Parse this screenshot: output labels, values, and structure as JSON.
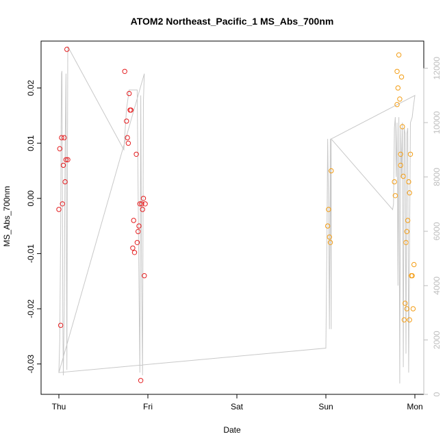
{
  "chart_data": {
    "type": "scatter",
    "title": "ATOM2 Northeast_Pacific_1 MS_Abs_700nm",
    "xlabel": "Date",
    "ylabel": "MS_Abs_700nm",
    "x_unit": "days since Thu 00:00",
    "xlim": [
      -0.2,
      4.1
    ],
    "ylim": [
      -0.0355,
      0.0285
    ],
    "x_ticks": [
      {
        "value": 0,
        "label": "Thu"
      },
      {
        "value": 1,
        "label": "Fri"
      },
      {
        "value": 2,
        "label": "Sat"
      },
      {
        "value": 3,
        "label": "Sun"
      },
      {
        "value": 4,
        "label": "Mon"
      }
    ],
    "y_ticks": [
      -0.03,
      -0.02,
      -0.01,
      0.0,
      0.01,
      0.02
    ],
    "y_tick_labels": [
      "-0.03",
      "-0.02",
      "-0.01",
      "0.00",
      "0.01",
      "0.02"
    ],
    "y2lim": [
      0,
      13000
    ],
    "y2_ticks": [
      0,
      2000,
      4000,
      6000,
      8000,
      10000,
      12000
    ],
    "grid": false,
    "colors": {
      "red_series": "#e41a1c",
      "orange_series": "#f39c12",
      "depth_line": "#c8c8c8",
      "axis": "#000000",
      "right_axis": "#bdbdbd"
    },
    "series": [
      {
        "marker": "open-circle",
        "color": "#e41a1c",
        "points": [
          [
            0.0,
            -0.002
          ],
          [
            0.01,
            0.009
          ],
          [
            0.02,
            -0.023
          ],
          [
            0.03,
            0.011
          ],
          [
            0.04,
            -0.001
          ],
          [
            0.05,
            0.006
          ],
          [
            0.06,
            0.011
          ],
          [
            0.07,
            0.003
          ],
          [
            0.08,
            0.007
          ],
          [
            0.09,
            0.027
          ],
          [
            0.1,
            0.007
          ],
          [
            0.74,
            0.023
          ],
          [
            0.76,
            0.014
          ],
          [
            0.77,
            0.011
          ],
          [
            0.78,
            0.01
          ],
          [
            0.79,
            0.019
          ],
          [
            0.8,
            0.016
          ],
          [
            0.81,
            0.016
          ],
          [
            0.83,
            -0.009
          ],
          [
            0.84,
            -0.004
          ],
          [
            0.85,
            -0.0098
          ],
          [
            0.87,
            0.008
          ],
          [
            0.88,
            -0.008
          ],
          [
            0.89,
            -0.006
          ],
          [
            0.9,
            -0.005
          ],
          [
            0.91,
            -0.001
          ],
          [
            0.92,
            -0.033
          ],
          [
            0.93,
            -0.001
          ],
          [
            0.94,
            -0.002
          ],
          [
            0.95,
            0.0
          ],
          [
            0.96,
            -0.014
          ],
          [
            0.97,
            -0.001
          ]
        ]
      },
      {
        "marker": "open-circle",
        "color": "#f39c12",
        "points": [
          [
            3.02,
            -0.005
          ],
          [
            3.03,
            -0.002
          ],
          [
            3.04,
            -0.007
          ],
          [
            3.05,
            -0.008
          ],
          [
            3.06,
            0.005
          ],
          [
            3.77,
            0.003
          ],
          [
            3.78,
            0.0005
          ],
          [
            3.8,
            0.017
          ],
          [
            3.8,
            0.023
          ],
          [
            3.81,
            0.02
          ],
          [
            3.82,
            0.026
          ],
          [
            3.83,
            0.018
          ],
          [
            3.84,
            0.008
          ],
          [
            3.84,
            0.006
          ],
          [
            3.85,
            0.022
          ],
          [
            3.86,
            0.013
          ],
          [
            3.87,
            0.004
          ],
          [
            3.88,
            -0.022
          ],
          [
            3.89,
            -0.019
          ],
          [
            3.9,
            -0.008
          ],
          [
            3.91,
            -0.006
          ],
          [
            3.91,
            -0.02
          ],
          [
            3.92,
            -0.004
          ],
          [
            3.93,
            0.003
          ],
          [
            3.94,
            0.001
          ],
          [
            3.94,
            -0.022
          ],
          [
            3.95,
            0.008
          ],
          [
            3.96,
            -0.014
          ],
          [
            3.97,
            -0.014
          ],
          [
            3.98,
            -0.02
          ],
          [
            3.99,
            -0.012
          ]
        ]
      }
    ],
    "depth_line": {
      "axis": "right",
      "color": "#c8c8c8",
      "points": [
        [
          0.0,
          800
        ],
        [
          0.01,
          2000
        ],
        [
          0.02,
          6000
        ],
        [
          0.025,
          10000
        ],
        [
          0.03,
          11800
        ],
        [
          0.035,
          11900
        ],
        [
          0.04,
          7000
        ],
        [
          0.045,
          2500
        ],
        [
          0.05,
          700
        ],
        [
          0.06,
          3000
        ],
        [
          0.07,
          9000
        ],
        [
          0.08,
          11800
        ],
        [
          0.085,
          5000
        ],
        [
          0.09,
          900
        ],
        [
          0.1,
          12800
        ],
        [
          0.73,
          9000
        ],
        [
          0.76,
          10500
        ],
        [
          0.79,
          11200
        ],
        [
          0.82,
          11200
        ],
        [
          0.85,
          11200
        ],
        [
          0.87,
          11200
        ],
        [
          0.88,
          11200
        ],
        [
          0.9,
          4000
        ],
        [
          0.91,
          800
        ],
        [
          0.92,
          11000
        ],
        [
          0.93,
          4000
        ],
        [
          0.94,
          700
        ],
        [
          0.95,
          10800
        ],
        [
          0.96,
          11800
        ],
        [
          0.96,
          11800
        ],
        [
          0.0,
          800
        ],
        [
          3.0,
          1700
        ],
        [
          3.01,
          5000
        ],
        [
          3.02,
          9400
        ],
        [
          3.03,
          7000
        ],
        [
          3.04,
          2400
        ],
        [
          3.05,
          9400
        ],
        [
          3.06,
          2400
        ],
        [
          3.06,
          9400
        ],
        [
          3.75,
          6800
        ],
        [
          3.76,
          7000
        ],
        [
          3.77,
          9800
        ],
        [
          3.78,
          10200
        ],
        [
          3.79,
          8000
        ],
        [
          3.8,
          10000
        ],
        [
          3.81,
          4000
        ],
        [
          3.82,
          10200
        ],
        [
          3.83,
          400
        ],
        [
          3.84,
          9800
        ],
        [
          3.85,
          8000
        ],
        [
          3.86,
          10000
        ],
        [
          3.87,
          1000
        ],
        [
          3.88,
          9800
        ],
        [
          3.89,
          9600
        ],
        [
          3.9,
          1500
        ],
        [
          3.91,
          9600
        ],
        [
          3.92,
          9800
        ],
        [
          3.93,
          800
        ],
        [
          3.95,
          10000
        ],
        [
          3.97,
          10200
        ],
        [
          3.98,
          10500
        ],
        [
          4.0,
          11000
        ],
        [
          3.06,
          9400
        ]
      ]
    }
  }
}
